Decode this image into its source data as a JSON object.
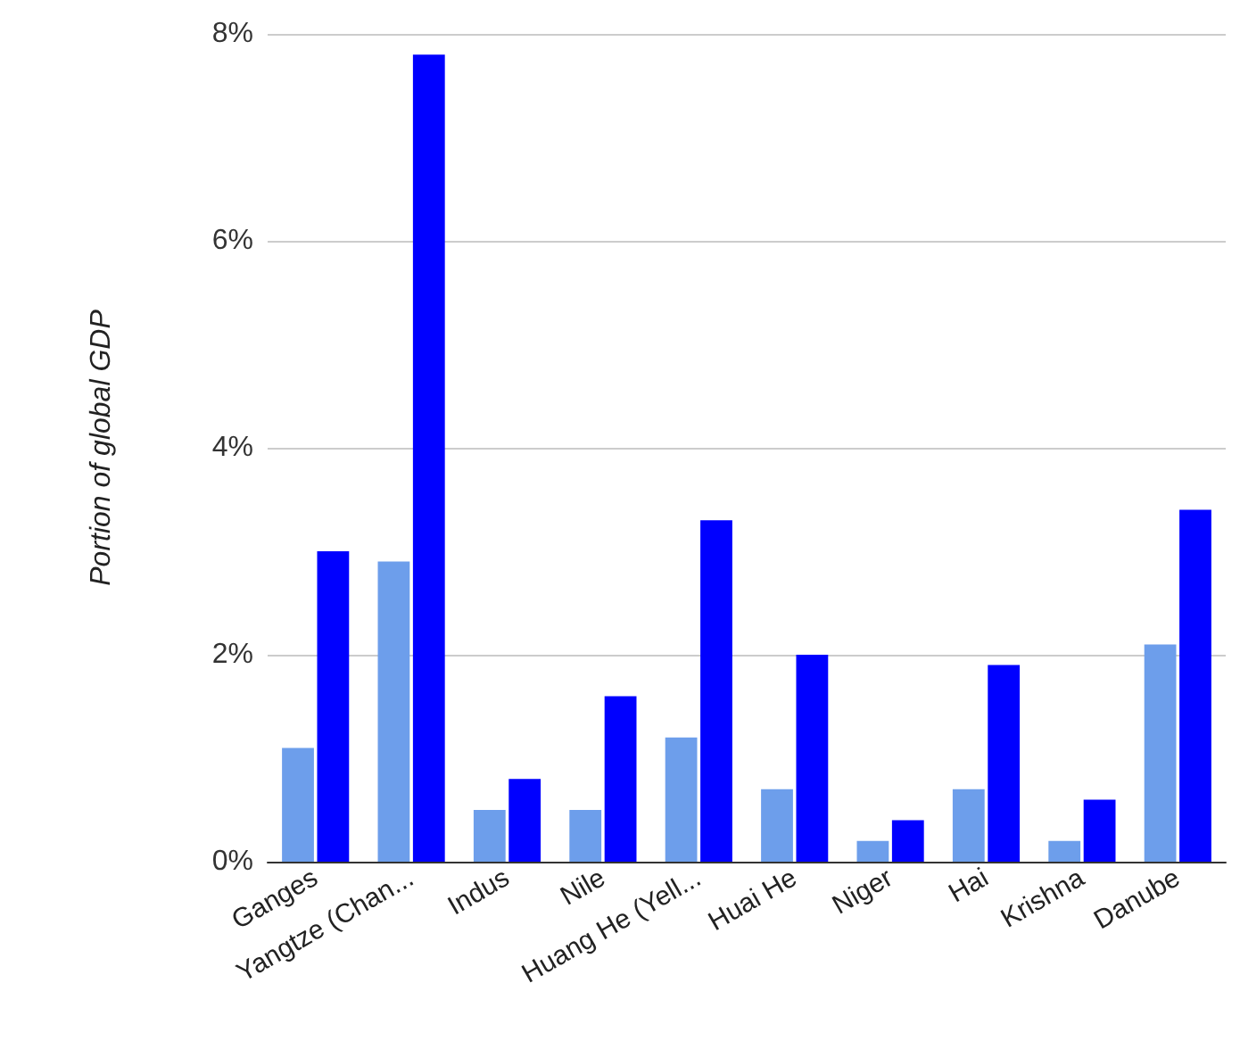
{
  "chart_data": {
    "type": "bar",
    "ylabel": "Portion of global GDP",
    "categories": [
      "Ganges",
      "Yangtze (Chan...",
      "Indus",
      "Nile",
      "Huang He (Yell...",
      "Huai He",
      "Niger",
      "Hai",
      "Krishna",
      "Danube"
    ],
    "series": [
      {
        "color": "#6d9eeb",
        "values": [
          1.1,
          2.9,
          0.5,
          0.5,
          1.2,
          0.7,
          0.2,
          0.7,
          0.2,
          2.1
        ]
      },
      {
        "color": "#0000ff",
        "values": [
          3.0,
          7.8,
          0.8,
          1.6,
          3.3,
          2.0,
          0.4,
          1.9,
          0.6,
          3.4
        ]
      }
    ],
    "ylim": [
      0,
      8
    ],
    "yticks": [
      {
        "value": 0,
        "label": "0%"
      },
      {
        "value": 2,
        "label": "2%"
      },
      {
        "value": 4,
        "label": "4%"
      },
      {
        "value": 6,
        "label": "6%"
      },
      {
        "value": 8,
        "label": "8%"
      }
    ],
    "grid": "y"
  }
}
